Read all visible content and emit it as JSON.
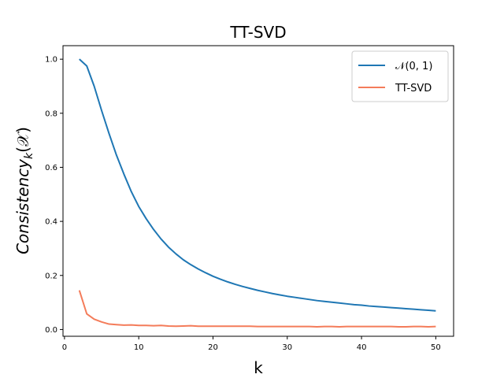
{
  "chart_data": {
    "type": "line",
    "title": "TT-SVD",
    "xlabel": "k",
    "ylabel": "Consistency",
    "ylabel_subscript": "k",
    "ylabel_arg": "(𝒳)",
    "xlim": [
      -0.2,
      52.4
    ],
    "ylim": [
      -0.025,
      1.05
    ],
    "xticks": [
      0,
      10,
      20,
      30,
      40,
      50
    ],
    "yticks": [
      0.0,
      0.2,
      0.4,
      0.6,
      0.8,
      1.0
    ],
    "xtick_labels": [
      "0",
      "10",
      "20",
      "30",
      "40",
      "50"
    ],
    "ytick_labels": [
      "0.0",
      "0.2",
      "0.4",
      "0.6",
      "0.8",
      "1.0"
    ],
    "grid": false,
    "legend_position": "top-right",
    "x": [
      2,
      3,
      4,
      5,
      6,
      7,
      8,
      9,
      10,
      11,
      12,
      13,
      14,
      15,
      16,
      17,
      18,
      19,
      20,
      21,
      22,
      23,
      24,
      25,
      26,
      27,
      28,
      29,
      30,
      31,
      32,
      33,
      34,
      35,
      36,
      37,
      38,
      39,
      40,
      41,
      42,
      43,
      44,
      45,
      46,
      47,
      48,
      49,
      50
    ],
    "series": [
      {
        "name": "𝒩(0, 1)",
        "color": "#1f77b4",
        "values": [
          1.0,
          0.975,
          0.9,
          0.81,
          0.725,
          0.645,
          0.575,
          0.51,
          0.455,
          0.41,
          0.37,
          0.335,
          0.305,
          0.28,
          0.258,
          0.24,
          0.224,
          0.21,
          0.197,
          0.186,
          0.176,
          0.167,
          0.159,
          0.152,
          0.145,
          0.139,
          0.133,
          0.128,
          0.123,
          0.119,
          0.115,
          0.111,
          0.107,
          0.104,
          0.101,
          0.098,
          0.095,
          0.092,
          0.09,
          0.087,
          0.085,
          0.083,
          0.081,
          0.079,
          0.077,
          0.075,
          0.073,
          0.071,
          0.069
        ]
      },
      {
        "name": "TT-SVD",
        "color": "#f47c5a",
        "values": [
          0.145,
          0.058,
          0.038,
          0.028,
          0.02,
          0.018,
          0.016,
          0.017,
          0.015,
          0.015,
          0.014,
          0.015,
          0.013,
          0.012,
          0.013,
          0.014,
          0.012,
          0.012,
          0.012,
          0.012,
          0.012,
          0.012,
          0.012,
          0.012,
          0.011,
          0.011,
          0.011,
          0.011,
          0.011,
          0.011,
          0.011,
          0.011,
          0.01,
          0.011,
          0.011,
          0.01,
          0.011,
          0.011,
          0.011,
          0.011,
          0.011,
          0.011,
          0.011,
          0.01,
          0.01,
          0.011,
          0.011,
          0.01,
          0.011
        ]
      }
    ]
  }
}
